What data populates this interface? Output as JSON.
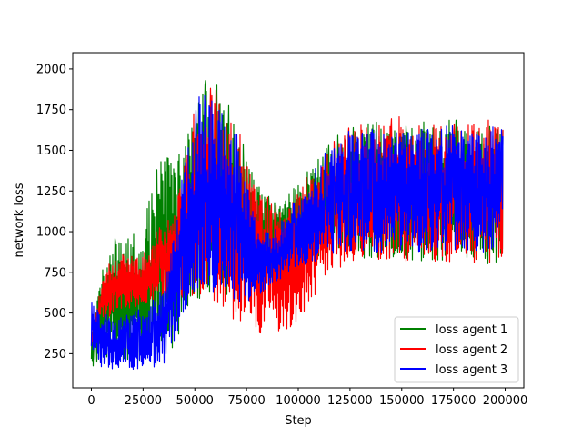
{
  "chart_data": {
    "type": "line",
    "title": "",
    "xlabel": "Step",
    "ylabel": "network loss",
    "xlim": [
      -9000,
      209000
    ],
    "ylim": [
      40,
      2100
    ],
    "xticks": [
      0,
      25000,
      50000,
      75000,
      100000,
      125000,
      150000,
      175000,
      200000
    ],
    "yticks": [
      250,
      500,
      750,
      1000,
      1250,
      1500,
      1750,
      2000
    ],
    "xtick_labels": [
      "0",
      "25000",
      "50000",
      "75000",
      "100000",
      "125000",
      "150000",
      "175000",
      "200000"
    ],
    "ytick_labels": [
      "250",
      "500",
      "750",
      "1000",
      "1250",
      "1500",
      "1750",
      "2000"
    ],
    "grid": false,
    "legend": {
      "position": "lower-right",
      "entries": [
        "loss agent 1",
        "loss agent 2",
        "loss agent 3"
      ]
    },
    "series": [
      {
        "name": "loss agent 1",
        "color": "#008000",
        "x": [
          0,
          5000,
          10000,
          15000,
          20000,
          25000,
          30000,
          35000,
          40000,
          45000,
          50000,
          55000,
          60000,
          65000,
          70000,
          75000,
          80000,
          85000,
          90000,
          95000,
          100000,
          105000,
          110000,
          115000,
          120000,
          125000,
          130000,
          140000,
          150000,
          160000,
          170000,
          180000,
          190000,
          199000
        ],
        "y_upper": [
          360,
          780,
          930,
          960,
          960,
          1020,
          1330,
          1450,
          1480,
          1500,
          1700,
          1900,
          1860,
          1750,
          1650,
          1450,
          1320,
          1200,
          1140,
          1220,
          1300,
          1380,
          1450,
          1510,
          1570,
          1600,
          1620,
          1640,
          1640,
          1640,
          1640,
          1640,
          1640,
          1640
        ],
        "y_lower": [
          170,
          200,
          200,
          200,
          200,
          210,
          230,
          260,
          290,
          430,
          520,
          630,
          620,
          590,
          580,
          600,
          640,
          700,
          720,
          750,
          790,
          820,
          850,
          870,
          860,
          850,
          840,
          830,
          820,
          820,
          820,
          810,
          800,
          800
        ]
      },
      {
        "name": "loss agent 2",
        "color": "#ff0000",
        "x": [
          0,
          5000,
          10000,
          15000,
          20000,
          25000,
          30000,
          35000,
          40000,
          45000,
          50000,
          55000,
          60000,
          65000,
          70000,
          75000,
          80000,
          85000,
          90000,
          95000,
          100000,
          105000,
          110000,
          115000,
          120000,
          125000,
          130000,
          140000,
          150000,
          160000,
          170000,
          180000,
          190000,
          199000
        ],
        "y_upper": [
          360,
          700,
          820,
          840,
          860,
          870,
          950,
          1050,
          1100,
          1400,
          1700,
          1850,
          1830,
          1720,
          1620,
          1430,
          1280,
          1180,
          1110,
          1180,
          1250,
          1330,
          1420,
          1500,
          1570,
          1620,
          1650,
          1660,
          1660,
          1660,
          1660,
          1660,
          1660,
          1650
        ],
        "y_lower": [
          300,
          450,
          480,
          500,
          500,
          520,
          560,
          600,
          630,
          560,
          580,
          600,
          560,
          500,
          440,
          400,
          380,
          360,
          360,
          400,
          460,
          540,
          620,
          700,
          760,
          810,
          830,
          830,
          820,
          820,
          810,
          810,
          800,
          800
        ]
      },
      {
        "name": "loss agent 3",
        "color": "#0000ff",
        "x": [
          0,
          5000,
          10000,
          15000,
          20000,
          25000,
          30000,
          35000,
          40000,
          45000,
          50000,
          55000,
          60000,
          65000,
          70000,
          75000,
          80000,
          85000,
          90000,
          95000,
          100000,
          105000,
          110000,
          115000,
          120000,
          125000,
          130000,
          140000,
          150000,
          160000,
          170000,
          180000,
          190000,
          199000
        ],
        "y_upper": [
          590,
          480,
          470,
          480,
          490,
          510,
          560,
          640,
          1000,
          1420,
          1720,
          1860,
          1830,
          1700,
          1600,
          1300,
          1030,
          1000,
          1020,
          1100,
          1200,
          1300,
          1400,
          1480,
          1540,
          1580,
          1600,
          1610,
          1610,
          1610,
          1610,
          1610,
          1610,
          1600
        ],
        "y_lower": [
          290,
          160,
          150,
          150,
          150,
          155,
          160,
          180,
          300,
          480,
          580,
          640,
          620,
          600,
          560,
          560,
          600,
          650,
          700,
          740,
          780,
          800,
          830,
          850,
          860,
          870,
          870,
          870,
          870,
          870,
          870,
          870,
          870,
          870
        ]
      }
    ]
  }
}
